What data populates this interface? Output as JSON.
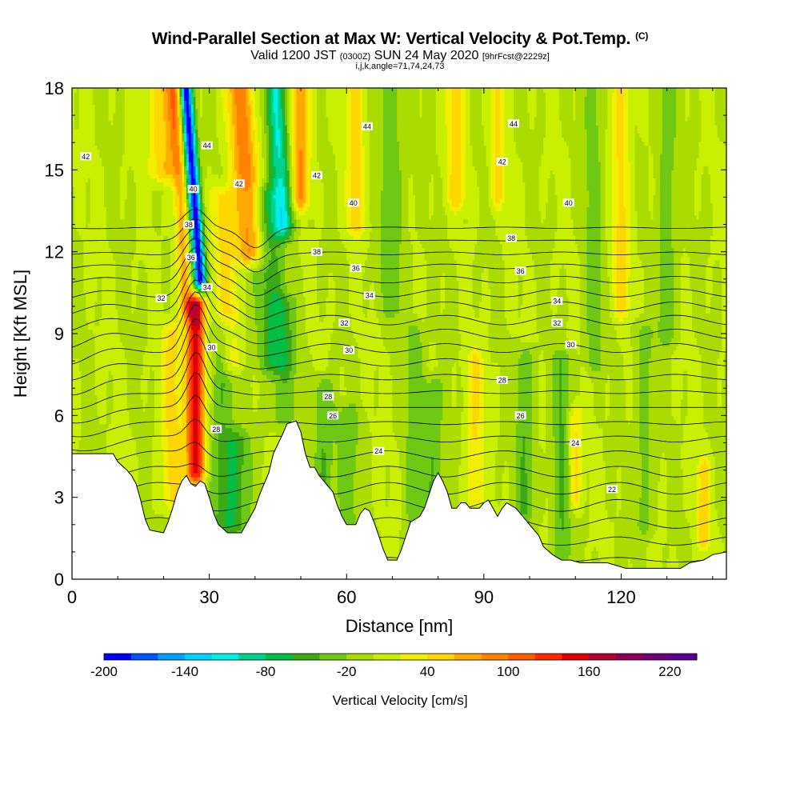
{
  "title": {
    "main": "Wind-Parallel Section at Max W: Vertical Velocity & Pot.Temp.",
    "copyright": "(C)",
    "valid_prefix": "Valid 1200 JST",
    "valid_utc": "(0300Z)",
    "valid_date": "SUN 24 May 2020",
    "forecast": "[9hrFcst@2229z]",
    "params": "i,j,k,angle=71,74,24,73"
  },
  "chart_data": {
    "type": "heatmap",
    "xlabel": "Distance [nm]",
    "ylabel": "Height [Kft MSL]",
    "xlim": [
      0,
      143
    ],
    "ylim": [
      0,
      18
    ],
    "x_ticks": [
      0,
      30,
      60,
      90,
      120
    ],
    "y_ticks": [
      0,
      3,
      6,
      9,
      12,
      15,
      18
    ],
    "terrain": [
      [
        0,
        4.6
      ],
      [
        5,
        4.6
      ],
      [
        9,
        4.6
      ],
      [
        10,
        4.3
      ],
      [
        12,
        4.0
      ],
      [
        13,
        3.8
      ],
      [
        14,
        3.5
      ],
      [
        15,
        2.9
      ],
      [
        16,
        2.2
      ],
      [
        17,
        1.8
      ],
      [
        20,
        1.7
      ],
      [
        21,
        2.1
      ],
      [
        22,
        2.6
      ],
      [
        23,
        3.2
      ],
      [
        24,
        3.6
      ],
      [
        25,
        3.8
      ],
      [
        26,
        3.5
      ],
      [
        27,
        3.4
      ],
      [
        28,
        3.6
      ],
      [
        29,
        3.5
      ],
      [
        30,
        3.0
      ],
      [
        31,
        2.4
      ],
      [
        32,
        2.0
      ],
      [
        34,
        1.7
      ],
      [
        37,
        1.7
      ],
      [
        38,
        2.0
      ],
      [
        40,
        2.6
      ],
      [
        41,
        3.1
      ],
      [
        43,
        3.9
      ],
      [
        44,
        4.6
      ],
      [
        46,
        5.3
      ],
      [
        47,
        5.7
      ],
      [
        49,
        5.8
      ],
      [
        50,
        5.4
      ],
      [
        51,
        4.6
      ],
      [
        52,
        4.1
      ],
      [
        53,
        4.1
      ],
      [
        54,
        3.8
      ],
      [
        55,
        3.6
      ],
      [
        56,
        3.4
      ],
      [
        57,
        3.2
      ],
      [
        58,
        2.7
      ],
      [
        59,
        2.3
      ],
      [
        60,
        2.0
      ],
      [
        62,
        2.0
      ],
      [
        63,
        2.4
      ],
      [
        64,
        2.6
      ],
      [
        65,
        2.5
      ],
      [
        66,
        2.1
      ],
      [
        67,
        1.6
      ],
      [
        68,
        1.1
      ],
      [
        69,
        0.7
      ],
      [
        71,
        0.7
      ],
      [
        72,
        1.1
      ],
      [
        73,
        1.6
      ],
      [
        74,
        2.1
      ],
      [
        76,
        2.3
      ],
      [
        77,
        2.6
      ],
      [
        78,
        3.1
      ],
      [
        79,
        3.6
      ],
      [
        80,
        3.9
      ],
      [
        81,
        3.6
      ],
      [
        82,
        3.2
      ],
      [
        83,
        2.6
      ],
      [
        84,
        2.6
      ],
      [
        85,
        2.8
      ],
      [
        86,
        2.8
      ],
      [
        87,
        2.6
      ],
      [
        89,
        2.6
      ],
      [
        90,
        2.8
      ],
      [
        91,
        2.9
      ],
      [
        92,
        2.6
      ],
      [
        93,
        2.3
      ],
      [
        94,
        2.6
      ],
      [
        95,
        2.8
      ],
      [
        97,
        2.6
      ],
      [
        98,
        2.4
      ],
      [
        100,
        2.0
      ],
      [
        102,
        1.6
      ],
      [
        103,
        1.2
      ],
      [
        105,
        0.9
      ],
      [
        107,
        0.7
      ],
      [
        109,
        0.7
      ],
      [
        111,
        0.6
      ],
      [
        113,
        0.6
      ],
      [
        115,
        0.6
      ],
      [
        117,
        0.6
      ],
      [
        119,
        0.5
      ],
      [
        121,
        0.4
      ],
      [
        124,
        0.4
      ],
      [
        127,
        0.4
      ],
      [
        130,
        0.4
      ],
      [
        133,
        0.4
      ],
      [
        135,
        0.6
      ],
      [
        138,
        0.7
      ],
      [
        140,
        0.9
      ],
      [
        143,
        1.0
      ]
    ],
    "theta_levels": [
      22,
      23,
      24,
      25,
      26,
      27,
      28,
      29,
      30,
      31,
      32,
      33,
      34,
      35,
      36,
      37,
      38,
      39,
      40,
      41,
      42,
      43,
      44,
      45
    ],
    "theta_labels": [
      {
        "x": 118.0,
        "y": 3.3,
        "text": "22"
      },
      {
        "x": 67.0,
        "y": 4.7,
        "text": "24"
      },
      {
        "x": 110.0,
        "y": 5.0,
        "text": "24"
      },
      {
        "x": 57.0,
        "y": 6.0,
        "text": "26"
      },
      {
        "x": 98.0,
        "y": 6.0,
        "text": "26"
      },
      {
        "x": 31.5,
        "y": 5.5,
        "text": "28"
      },
      {
        "x": 56.0,
        "y": 6.7,
        "text": "28"
      },
      {
        "x": 94.0,
        "y": 7.3,
        "text": "28"
      },
      {
        "x": 30.5,
        "y": 8.5,
        "text": "30"
      },
      {
        "x": 60.5,
        "y": 8.4,
        "text": "30"
      },
      {
        "x": 109.0,
        "y": 8.6,
        "text": "30"
      },
      {
        "x": 19.5,
        "y": 10.3,
        "text": "32"
      },
      {
        "x": 59.5,
        "y": 9.4,
        "text": "32"
      },
      {
        "x": 106.0,
        "y": 9.4,
        "text": "32"
      },
      {
        "x": 29.5,
        "y": 10.7,
        "text": "34"
      },
      {
        "x": 65.0,
        "y": 10.4,
        "text": "34"
      },
      {
        "x": 106.0,
        "y": 10.2,
        "text": "34"
      },
      {
        "x": 26.0,
        "y": 11.8,
        "text": "36"
      },
      {
        "x": 62.0,
        "y": 11.4,
        "text": "36"
      },
      {
        "x": 98.0,
        "y": 11.3,
        "text": "36"
      },
      {
        "x": 25.5,
        "y": 13.0,
        "text": "38"
      },
      {
        "x": 53.5,
        "y": 12.0,
        "text": "38"
      },
      {
        "x": 96.0,
        "y": 12.5,
        "text": "38"
      },
      {
        "x": 26.5,
        "y": 14.3,
        "text": "40"
      },
      {
        "x": 61.5,
        "y": 13.8,
        "text": "40"
      },
      {
        "x": 108.5,
        "y": 13.8,
        "text": "40"
      },
      {
        "x": 36.5,
        "y": 14.5,
        "text": "42"
      },
      {
        "x": 53.5,
        "y": 14.8,
        "text": "42"
      },
      {
        "x": 94.0,
        "y": 15.3,
        "text": "42"
      },
      {
        "x": 3.0,
        "y": 15.5,
        "text": "42"
      },
      {
        "x": 29.5,
        "y": 15.9,
        "text": "44"
      },
      {
        "x": 64.5,
        "y": 16.6,
        "text": "44"
      },
      {
        "x": 96.5,
        "y": 16.7,
        "text": "44"
      }
    ],
    "features": [
      {
        "x": 27.0,
        "y0": 4.0,
        "y1": 10.0,
        "w": 2.0,
        "amp": 160,
        "tilt": 0.0
      },
      {
        "x": 25.0,
        "y0": 10.0,
        "y1": 18.0,
        "w": 1.6,
        "amp": 70,
        "tilt": -0.35
      },
      {
        "x": 22.0,
        "y0": 3.0,
        "y1": 9.0,
        "w": 2.5,
        "amp": 45,
        "tilt": 0.0
      },
      {
        "x": 20.0,
        "y0": 15.0,
        "y1": 18.0,
        "w": 3.0,
        "amp": 60,
        "tilt": 0.0
      },
      {
        "x": 28.0,
        "y0": 11.0,
        "y1": 18.0,
        "w": 1.4,
        "amp": -200,
        "tilt": -0.45
      },
      {
        "x": 33.0,
        "y0": 2.0,
        "y1": 9.0,
        "w": 3.0,
        "amp": -40,
        "tilt": 0.0
      },
      {
        "x": 36.0,
        "y0": 2.0,
        "y1": 5.0,
        "w": 3.0,
        "amp": -45,
        "tilt": 0.0
      },
      {
        "x": 39.0,
        "y0": 12.0,
        "y1": 18.0,
        "w": 3.0,
        "amp": 90,
        "tilt": -0.4
      },
      {
        "x": 35.0,
        "y0": 8.0,
        "y1": 14.0,
        "w": 2.5,
        "amp": 50,
        "tilt": -0.4
      },
      {
        "x": 46.0,
        "y0": 13.0,
        "y1": 18.0,
        "w": 2.3,
        "amp": -100,
        "tilt": -0.3
      },
      {
        "x": 44.0,
        "y0": 8.0,
        "y1": 14.0,
        "w": 3.5,
        "amp": -50,
        "tilt": -0.3
      },
      {
        "x": 50.0,
        "y0": 14.0,
        "y1": 18.0,
        "w": 2.0,
        "amp": 80,
        "tilt": 0.0
      },
      {
        "x": 46.0,
        "y0": 6.0,
        "y1": 10.0,
        "w": 3.0,
        "amp": -35,
        "tilt": 0.0
      },
      {
        "x": 55.0,
        "y0": 3.5,
        "y1": 7.0,
        "w": 2.0,
        "amp": -40,
        "tilt": 0.0
      },
      {
        "x": 60.0,
        "y0": 2.0,
        "y1": 6.0,
        "w": 3.0,
        "amp": -30,
        "tilt": 0.0
      },
      {
        "x": 62.0,
        "y0": 13.0,
        "y1": 18.0,
        "w": 2.0,
        "amp": 50,
        "tilt": 0.0
      },
      {
        "x": 70.0,
        "y0": 10.0,
        "y1": 18.0,
        "w": 3.0,
        "amp": -30,
        "tilt": 0.0
      },
      {
        "x": 75.0,
        "y0": 1.5,
        "y1": 9.0,
        "w": 2.0,
        "amp": -35,
        "tilt": 0.0
      },
      {
        "x": 79.0,
        "y0": 2.0,
        "y1": 7.0,
        "w": 2.0,
        "amp": -40,
        "tilt": 0.0
      },
      {
        "x": 84.0,
        "y0": 14.0,
        "y1": 18.0,
        "w": 2.0,
        "amp": 50,
        "tilt": 0.0
      },
      {
        "x": 88.0,
        "y0": 3.0,
        "y1": 8.0,
        "w": 2.0,
        "amp": 40,
        "tilt": 0.0
      },
      {
        "x": 93.0,
        "y0": 14.0,
        "y1": 18.0,
        "w": 1.5,
        "amp": 45,
        "tilt": 0.0
      },
      {
        "x": 99.0,
        "y0": 2.5,
        "y1": 8.0,
        "w": 2.0,
        "amp": -40,
        "tilt": 0.0
      },
      {
        "x": 107.0,
        "y0": 1.0,
        "y1": 8.0,
        "w": 2.0,
        "amp": -40,
        "tilt": 0.0
      },
      {
        "x": 110.0,
        "y0": 3.0,
        "y1": 6.0,
        "w": 1.5,
        "amp": 45,
        "tilt": 0.0
      },
      {
        "x": 114.0,
        "y0": 8.0,
        "y1": 18.0,
        "w": 2.0,
        "amp": -30,
        "tilt": 0.0
      },
      {
        "x": 120.0,
        "y0": 10.0,
        "y1": 18.0,
        "w": 2.0,
        "amp": 45,
        "tilt": 0.0
      },
      {
        "x": 125.0,
        "y0": 2.0,
        "y1": 9.0,
        "w": 2.0,
        "amp": -30,
        "tilt": 0.0
      },
      {
        "x": 130.0,
        "y0": 9.0,
        "y1": 18.0,
        "w": 2.0,
        "amp": -35,
        "tilt": 0.0
      },
      {
        "x": 138.0,
        "y0": 1.5,
        "y1": 4.0,
        "w": 1.5,
        "amp": 50,
        "tilt": 0.0
      }
    ],
    "colorbar": {
      "label": "Vertical Velocity [cm/s]",
      "min": -200,
      "max": 240,
      "step": 20,
      "tick_labels": [
        "-200",
        "-140",
        "-80",
        "-20",
        "40",
        "100",
        "160",
        "220"
      ],
      "colors": [
        "#0000ff",
        "#0055ff",
        "#00a0ff",
        "#00d2ff",
        "#00f0e6",
        "#00d28c",
        "#00be46",
        "#3caa14",
        "#6ec814",
        "#aadc00",
        "#c8f000",
        "#f0f000",
        "#ffd700",
        "#ffaa00",
        "#ff8200",
        "#ff5a00",
        "#ff2800",
        "#dc0000",
        "#b40032",
        "#8c005a",
        "#6e0078",
        "#5a0091"
      ]
    }
  }
}
